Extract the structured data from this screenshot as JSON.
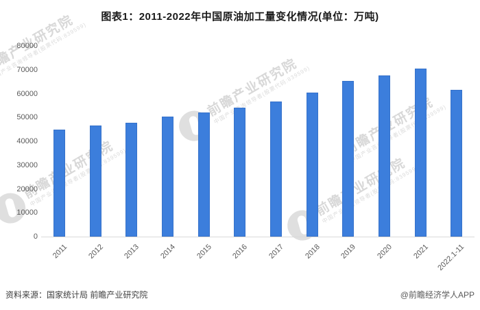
{
  "title": "图表1：2011-2022年中国原油加工量变化情况(单位：万吨)",
  "chart_data": {
    "type": "bar",
    "title": "图表1：2011-2022年中国原油加工量变化情况(单位：万吨)",
    "unit": "万吨",
    "categories": [
      "2011",
      "2012",
      "2013",
      "2014",
      "2015",
      "2016",
      "2017",
      "2018",
      "2019",
      "2020",
      "2021",
      "2022.1-11"
    ],
    "values": [
      44800,
      46700,
      47900,
      50300,
      52200,
      54100,
      56800,
      60400,
      65200,
      67500,
      70400,
      61700
    ],
    "ylim": [
      0,
      80000
    ],
    "yticks": [
      "0",
      "10000",
      "20000",
      "30000",
      "40000",
      "50000",
      "60000",
      "70000",
      "80000"
    ],
    "grid": false,
    "legend_position": "none",
    "bar_color": "#3c7edc",
    "axis_label_color": "#595959",
    "baseline_color": "#d9d9d9"
  },
  "footer": {
    "source": "资料来源：国家统计局 前瞻产业研究院",
    "credit": "@前瞻经济学人APP"
  },
  "watermark": {
    "brand": "前瞻产业研究院",
    "tagline": "中国产业咨询领导者(股票代码:839599)",
    "logo": "qianzhan-logo"
  }
}
